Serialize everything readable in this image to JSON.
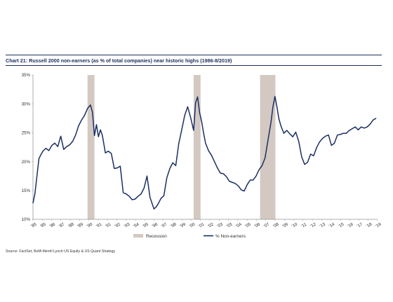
{
  "title": "Chart 21: Russell 2000 non-earners (as % of total companies) near historic highs (1986-8/2019)",
  "source": "Source: FactSet, BofA Merrill Lynch US Equity & US Quant Strategy",
  "colors": {
    "line": "#1b2f64",
    "recession": "#d3c9c2",
    "axis": "#999999",
    "title": "#1a2e5a"
  },
  "chart_data": {
    "type": "line",
    "xlabel": "",
    "ylabel": "",
    "xlim": [
      1985.0,
      2019.75
    ],
    "ylim": [
      10,
      35
    ],
    "y_ticks": [
      10,
      15,
      20,
      25,
      30,
      35
    ],
    "y_tick_labels": [
      "10%",
      "15%",
      "20%",
      "25%",
      "30%",
      "35%"
    ],
    "x_tick_labels": [
      "'85",
      "'85",
      "'86",
      "'87",
      "'88",
      "'89",
      "'90",
      "'91",
      "'91",
      "'92",
      "'93",
      "'94",
      "'95",
      "'96",
      "'97",
      "'98",
      "'99",
      "'00",
      "'01",
      "'02",
      "'03",
      "'03",
      "'04",
      "'05",
      "'06",
      "'07",
      "'08",
      "'09",
      "'10",
      "'11",
      "'12",
      "'13",
      "'14",
      "'15",
      "'16",
      "'17",
      "'18",
      "'19"
    ],
    "legend": {
      "position": "bottom",
      "recession_label": "Recession",
      "series_label": "% Non-earners"
    },
    "recessions": [
      [
        1990.5,
        1991.2
      ],
      [
        2001.2,
        2001.9
      ],
      [
        2007.9,
        2009.45
      ]
    ],
    "series": [
      {
        "name": "% Non-earners",
        "x": [
          1985.0,
          1985.2,
          1985.4,
          1985.6,
          1985.8,
          1986.0,
          1986.3,
          1986.6,
          1986.9,
          1987.2,
          1987.5,
          1987.8,
          1988.1,
          1988.4,
          1988.7,
          1989.0,
          1989.3,
          1989.6,
          1989.9,
          1990.2,
          1990.5,
          1990.8,
          1991.0,
          1991.2,
          1991.4,
          1991.6,
          1991.8,
          1992.0,
          1992.3,
          1992.6,
          1992.9,
          1993.2,
          1993.5,
          1993.8,
          1994.1,
          1994.4,
          1994.7,
          1995.0,
          1995.3,
          1995.6,
          1995.9,
          1996.2,
          1996.5,
          1996.8,
          1997.0,
          1997.2,
          1997.4,
          1997.6,
          1997.9,
          1998.2,
          1998.5,
          1998.8,
          1999.1,
          1999.4,
          1999.7,
          2000.0,
          2000.3,
          2000.6,
          2000.9,
          2001.2,
          2001.4,
          2001.6,
          2001.8,
          2002.0,
          2002.2,
          2002.4,
          2002.7,
          2003.0,
          2003.3,
          2003.6,
          2003.9,
          2004.2,
          2004.5,
          2004.8,
          2005.1,
          2005.4,
          2005.7,
          2006.0,
          2006.3,
          2006.6,
          2006.9,
          2007.2,
          2007.5,
          2007.8,
          2008.1,
          2008.4,
          2008.7,
          2009.0,
          2009.2,
          2009.4,
          2009.6,
          2009.8,
          2010.0,
          2010.3,
          2010.6,
          2010.9,
          2011.2,
          2011.5,
          2011.8,
          2012.1,
          2012.4,
          2012.7,
          2013.0,
          2013.3,
          2013.6,
          2013.9,
          2014.2,
          2014.5,
          2014.8,
          2015.1,
          2015.4,
          2015.7,
          2016.0,
          2016.3,
          2016.6,
          2016.9,
          2017.2,
          2017.5,
          2017.8,
          2018.1,
          2018.4,
          2018.7,
          2019.0,
          2019.3,
          2019.6
        ],
        "values": [
          12.8,
          14.5,
          17.5,
          20.5,
          21.2,
          21.8,
          22.3,
          21.9,
          22.8,
          23.2,
          22.6,
          24.4,
          22.1,
          22.6,
          22.9,
          23.5,
          24.6,
          26.2,
          27.2,
          28.0,
          29.2,
          29.8,
          28.5,
          24.5,
          26.4,
          24.3,
          25.5,
          24.5,
          21.5,
          21.8,
          21.4,
          18.8,
          18.9,
          19.2,
          14.6,
          14.4,
          14.0,
          13.4,
          13.5,
          14.0,
          14.4,
          15.4,
          17.5,
          13.8,
          12.8,
          11.8,
          12.1,
          12.6,
          13.6,
          14.1,
          17.2,
          18.8,
          19.8,
          19.3,
          23.1,
          25.5,
          28.0,
          29.5,
          27.6,
          25.4,
          30.2,
          31.2,
          28.5,
          27.0,
          25.0,
          23.2,
          21.9,
          21.1,
          20.0,
          18.9,
          18.0,
          17.9,
          17.4,
          16.6,
          16.4,
          16.2,
          15.8,
          15.1,
          14.9,
          16.0,
          16.8,
          16.8,
          17.5,
          18.6,
          19.3,
          20.6,
          23.7,
          26.8,
          29.5,
          31.3,
          29.5,
          27.4,
          26.2,
          24.9,
          25.4,
          24.8,
          24.3,
          25.1,
          23.5,
          20.8,
          19.5,
          19.9,
          21.3,
          21.0,
          22.4,
          23.4,
          24.0,
          24.4,
          24.6,
          22.8,
          23.2,
          24.6,
          24.7,
          24.9,
          24.9,
          25.4,
          25.7,
          26.0,
          25.5,
          26.0,
          25.8,
          26.0,
          26.5,
          27.2,
          27.5
        ]
      }
    ]
  }
}
